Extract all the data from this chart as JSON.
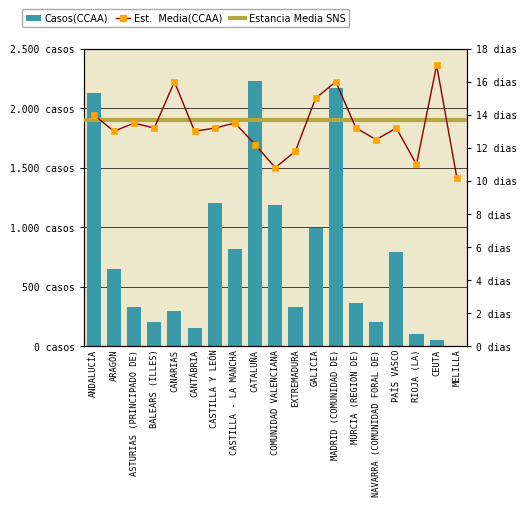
{
  "categories": [
    "ANDALUCÍA",
    "ARAGÓN",
    "ASTURIAS (PRINCIPADO DE)",
    "BALEARS (ILLES)",
    "CANARIAS",
    "CANTÁBRIA",
    "CASTILLA Y LEÓN",
    "CASTILLA - LA MANCHA",
    "CATALUÑA",
    "COMUNIDAD VALENCIANA",
    "EXTREMADURA",
    "GALICIA",
    "MADRID (COMUNIDAD DE)",
    "MURCIA (REGION DE)",
    "NAVARRA (COMUNIDAD FORAL DE)",
    "PAÍS VASCO",
    "RIOJA (LA)",
    "CEUTA",
    "MELILLA"
  ],
  "casos": [
    2130,
    650,
    330,
    200,
    300,
    150,
    1200,
    820,
    2230,
    1190,
    330,
    990,
    2170,
    360,
    200,
    790,
    100,
    50,
    0
  ],
  "estancia_media": [
    14.0,
    13.0,
    13.5,
    13.2,
    16.0,
    13.0,
    13.2,
    13.5,
    12.2,
    10.8,
    11.8,
    15.0,
    16.0,
    13.2,
    12.5,
    13.2,
    11.0,
    17.0,
    10.2
  ],
  "sns_line": 13.7,
  "bar_color": "#3a9aa8",
  "line_color": "#8B0000",
  "marker_facecolor": "#FFA500",
  "marker_edgecolor": "#FFA500",
  "sns_color": "#b5a642",
  "bg_color": "#EDE8CC",
  "fig_facecolor": "#ffffff",
  "ylim_left": [
    0,
    2500
  ],
  "ylim_right": [
    0,
    18
  ],
  "left_ticks": [
    0,
    500,
    1000,
    1500,
    2000,
    2500
  ],
  "right_ticks": [
    0,
    2,
    4,
    6,
    8,
    10,
    12,
    14,
    16,
    18
  ],
  "left_tick_labels": [
    "0 casos",
    "500 casos",
    "1.000 casos",
    "1.500 casos",
    "2.000 casos",
    "2.500 casos"
  ],
  "right_tick_labels": [
    "0 dias",
    "2 dias",
    "4 dias",
    "6 dias",
    "8 dias",
    "10 dias",
    "12 dias",
    "14 dias",
    "16 dias",
    "18 dias"
  ],
  "legend_casos": "Casos(CCAA)",
  "legend_est": "Est.  Media(CCAA)",
  "legend_sns": "Estancia Media SNS"
}
